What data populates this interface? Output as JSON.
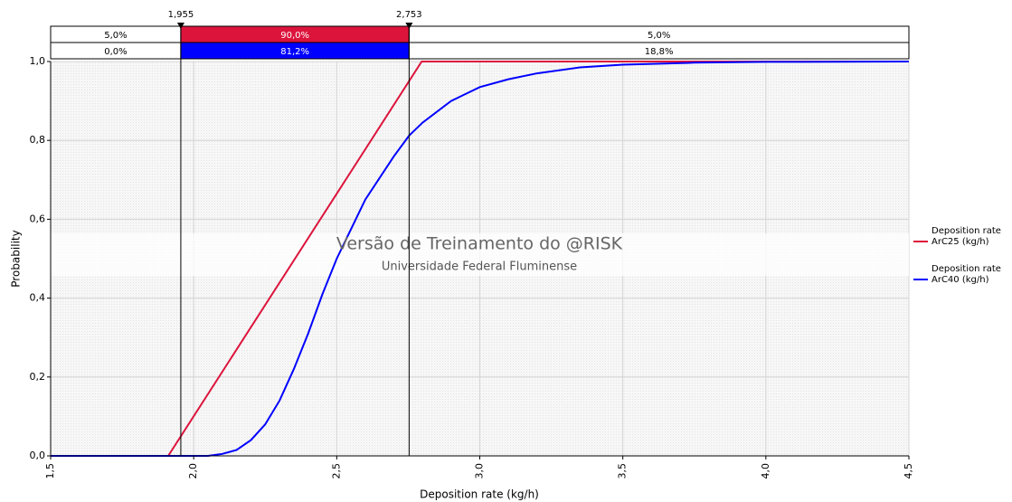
{
  "chart_data": {
    "type": "line",
    "x_label": "Deposition rate (kg/h)",
    "y_label": "Probability",
    "xlim": [
      1.5,
      4.5
    ],
    "ylim": [
      0,
      1
    ],
    "xticks": [
      {
        "value": 1.5,
        "label": "1,5"
      },
      {
        "value": 2,
        "label": "2,0"
      },
      {
        "value": 2.5,
        "label": "2,5"
      },
      {
        "value": 3,
        "label": "3,0"
      },
      {
        "value": 3.5,
        "label": "3,5"
      },
      {
        "value": 4,
        "label": "4,0"
      },
      {
        "value": 4.5,
        "label": "4,5"
      }
    ],
    "yticks": [
      {
        "value": 0,
        "label": "0,0"
      },
      {
        "value": 0.2,
        "label": "0,2"
      },
      {
        "value": 0.4,
        "label": "0,4"
      },
      {
        "value": 0.6,
        "label": "0,6"
      },
      {
        "value": 0.8,
        "label": "0,8"
      },
      {
        "value": 1,
        "label": "1,0"
      }
    ],
    "grid": true,
    "legend": "right",
    "delimiters": [
      {
        "value": 1.955,
        "label": "1,955"
      },
      {
        "value": 2.753,
        "label": "2,753"
      }
    ],
    "band_rows": [
      {
        "color": "#dc143c",
        "values": [
          5,
          90,
          5
        ],
        "value_labels": [
          "5,0%",
          "90,0%",
          "5,0%"
        ]
      },
      {
        "color": "#0000ff",
        "values": [
          0,
          81.2,
          18.8
        ],
        "value_labels": [
          "0,0%",
          "81,2%",
          "18,8%"
        ]
      }
    ],
    "annotations": [
      "Versão de Treinamento do @RISK",
      "Universidade Federal Fluminense"
    ],
    "series": [
      {
        "name": "Deposition rate ArC25 (kg/h)",
        "color": "#dc143c",
        "x": [
          1.5,
          1.911,
          2.797,
          4.5
        ],
        "values": [
          0,
          0,
          1,
          1
        ]
      },
      {
        "name": "Deposition rate ArC40 (kg/h)",
        "color": "#0000ff",
        "x": [
          1.5,
          2.0,
          2.05,
          2.1,
          2.15,
          2.2,
          2.25,
          2.3,
          2.35,
          2.4,
          2.45,
          2.5,
          2.6,
          2.7,
          2.753,
          2.8,
          2.9,
          3.0,
          3.1,
          3.2,
          3.35,
          3.5,
          3.75,
          4.0,
          4.5
        ],
        "values": [
          0,
          0,
          0,
          0.005,
          0.015,
          0.04,
          0.08,
          0.14,
          0.22,
          0.31,
          0.41,
          0.5,
          0.65,
          0.76,
          0.812,
          0.845,
          0.9,
          0.935,
          0.955,
          0.97,
          0.985,
          0.992,
          0.997,
          0.999,
          1
        ]
      }
    ]
  }
}
